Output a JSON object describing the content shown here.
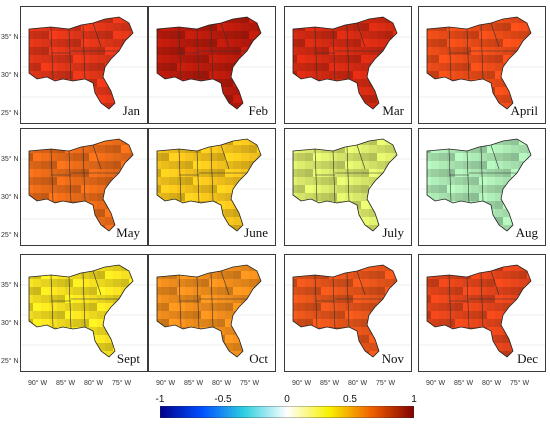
{
  "panels": [
    {
      "month": "Jan",
      "palette": "#e03518"
    },
    {
      "month": "Feb",
      "palette": "#b81a0c"
    },
    {
      "month": "Mar",
      "palette": "#d42a12"
    },
    {
      "month": "April",
      "palette": "#e94b18"
    },
    {
      "month": "May",
      "palette": "#e86a18"
    },
    {
      "month": "June",
      "palette": "#f3c21c"
    },
    {
      "month": "July",
      "palette": "#d9e86a"
    },
    {
      "month": "Aug",
      "palette": "#a8e4b0"
    },
    {
      "month": "Sept",
      "palette": "#f6e020"
    },
    {
      "month": "Oct",
      "palette": "#ef8c1c"
    },
    {
      "month": "Nov",
      "palette": "#e6541a"
    },
    {
      "month": "Dec",
      "palette": "#e2441a"
    }
  ],
  "lat_labels": [
    "35° N",
    "30° N",
    "25° N"
  ],
  "lon_labels": [
    "90° W",
    "85° W",
    "80° W",
    "75° W"
  ],
  "colorbar": {
    "ticks": [
      "-1",
      "-0.5",
      "0",
      "0.5",
      "1"
    ],
    "colors": [
      "#00008b",
      "#0050ff",
      "#30d0e0",
      "#ffffff",
      "#f8f000",
      "#f06000",
      "#800000"
    ]
  }
}
